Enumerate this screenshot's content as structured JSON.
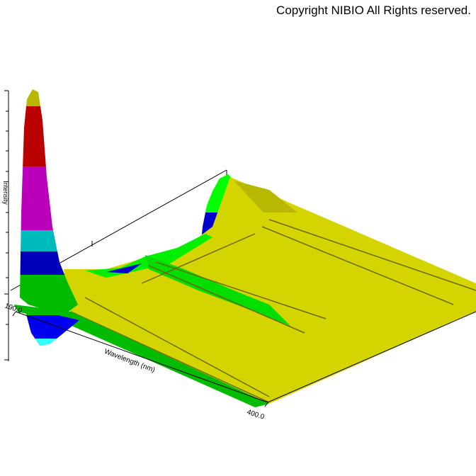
{
  "chart_data": {
    "type": "surface3d",
    "annotation": "Copyright NIBIO All Rights reserved.",
    "xlabel": "Wavelength (nm)",
    "zlabel": "Intensity",
    "xlim": [
      190,
      400
    ],
    "xticks": [
      {
        "value": 190,
        "label": "190.0"
      },
      {
        "value": 400,
        "label": "400.0"
      }
    ]
  }
}
